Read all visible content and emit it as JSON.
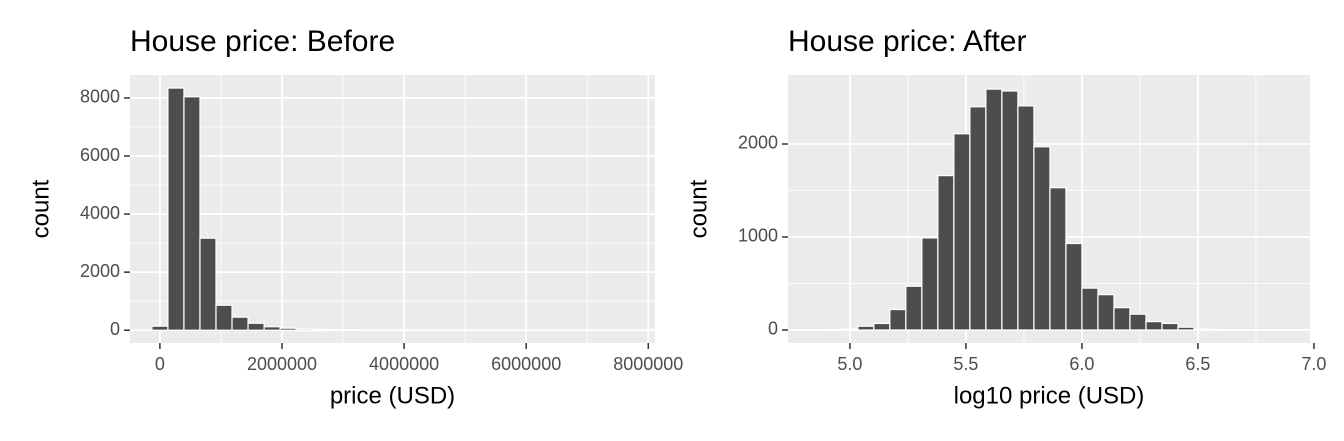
{
  "chart_data": [
    {
      "type": "histogram",
      "title": "House price: Before",
      "x_label": "price (USD)",
      "y_label": "count",
      "color": "#4d4d4d",
      "bins": [
        -131250,
        131250,
        393750,
        656250,
        918750,
        1181250,
        1443750,
        1706250,
        1968750,
        2231250,
        2493750,
        2756250,
        3018750,
        3281250,
        3543750,
        3806250,
        4068750,
        4331250,
        4593750,
        4856250,
        5118750,
        5381250,
        5643750,
        5906250,
        6168750,
        6431250,
        6693750,
        6956250,
        7218750,
        7481250,
        7743750
      ],
      "counts": [
        140,
        8340,
        8040,
        3170,
        860,
        450,
        240,
        120,
        70,
        45,
        30,
        20,
        15,
        10,
        8,
        6,
        4,
        3,
        2,
        2,
        1,
        1,
        1,
        1,
        0,
        1,
        0,
        0,
        0,
        1
      ],
      "xlim": [
        -490000,
        8110000
      ],
      "xticks": [
        0,
        2000000,
        4000000,
        6000000,
        8000000
      ],
      "ylim": [
        -440,
        8790
      ],
      "yticks": [
        0,
        2000,
        4000,
        6000,
        8000
      ],
      "grid": true
    },
    {
      "type": "histogram",
      "title": "House price: After",
      "x_label": "log10 price (USD)",
      "y_label": "count",
      "color": "#4d4d4d",
      "bins": [
        4.896,
        4.965,
        5.034,
        5.103,
        5.172,
        5.241,
        5.31,
        5.379,
        5.448,
        5.517,
        5.586,
        5.655,
        5.724,
        5.793,
        5.862,
        5.931,
        6.0,
        6.069,
        6.138,
        6.207,
        6.276,
        6.345,
        6.414,
        6.483,
        6.552,
        6.621,
        6.69,
        6.759,
        6.828,
        6.897,
        6.966
      ],
      "counts": [
        5,
        10,
        40,
        70,
        220,
        470,
        990,
        1660,
        2110,
        2400,
        2590,
        2570,
        2410,
        1970,
        1530,
        930,
        450,
        380,
        240,
        170,
        90,
        70,
        30,
        10,
        5,
        3,
        2,
        1,
        1,
        1
      ],
      "xlim": [
        4.733,
        6.983
      ],
      "xticks": [
        {
          "value": 5,
          "label": "5.0"
        },
        5.5,
        {
          "value": 6,
          "label": "6.0"
        },
        6.5,
        {
          "value": 7,
          "label": "7.0"
        }
      ],
      "ylim": [
        -140,
        2742
      ],
      "yticks": [
        0,
        1000,
        2000
      ],
      "grid": true
    }
  ]
}
